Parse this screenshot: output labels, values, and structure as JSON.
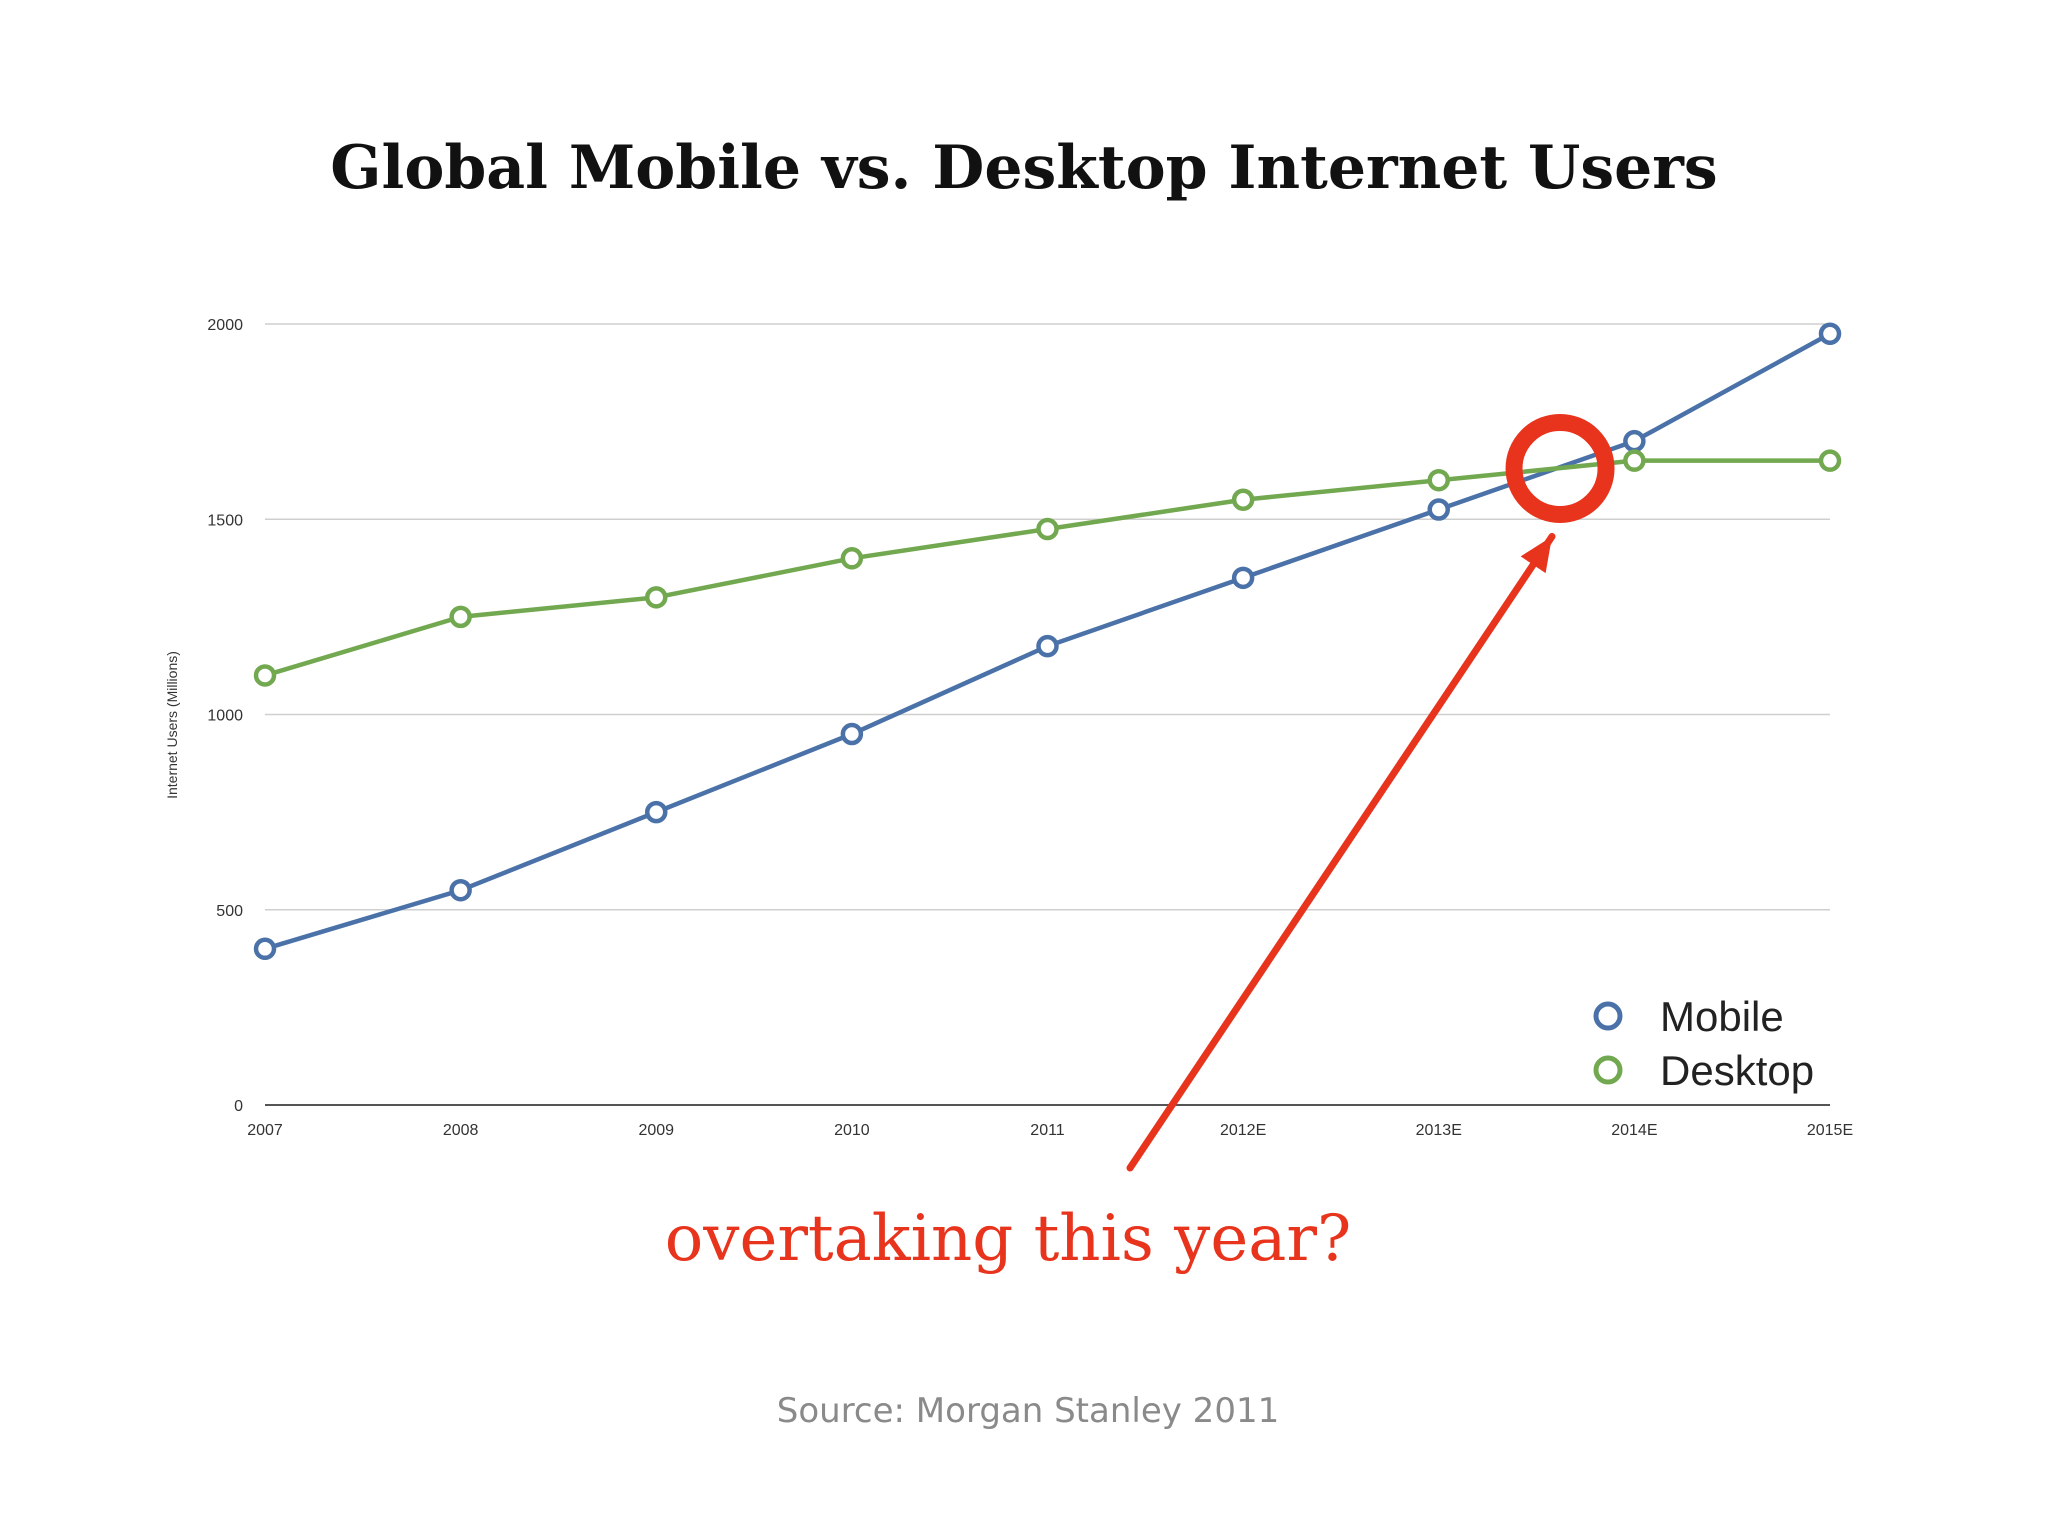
{
  "chart_data": {
    "type": "line",
    "title": "Global Mobile vs. Desktop Internet Users",
    "ylabel": "Internet Users (Millions)",
    "xlabel": "",
    "ylim": [
      0,
      2000
    ],
    "y_ticks": [
      0,
      500,
      1000,
      1500,
      2000
    ],
    "categories": [
      "2007",
      "2008",
      "2009",
      "2010",
      "2011",
      "2012E",
      "2013E",
      "2014E",
      "2015E"
    ],
    "grid": "horizontal",
    "legend_position": "bottom-right",
    "series": [
      {
        "name": "Mobile",
        "color": "#4a72a8",
        "values": [
          400,
          550,
          750,
          950,
          1175,
          1350,
          1525,
          1700,
          1975
        ]
      },
      {
        "name": "Desktop",
        "color": "#72a84f",
        "values": [
          1100,
          1250,
          1300,
          1400,
          1475,
          1550,
          1600,
          1650,
          1650
        ]
      }
    ],
    "annotation": {
      "text": "overtaking this year?",
      "color": "#e8341c",
      "target_x_fraction_between": [
        "2013E",
        "2014E"
      ],
      "target_position": 0.62,
      "target_value": 1630
    },
    "source": "Source: Morgan Stanley 2011"
  }
}
